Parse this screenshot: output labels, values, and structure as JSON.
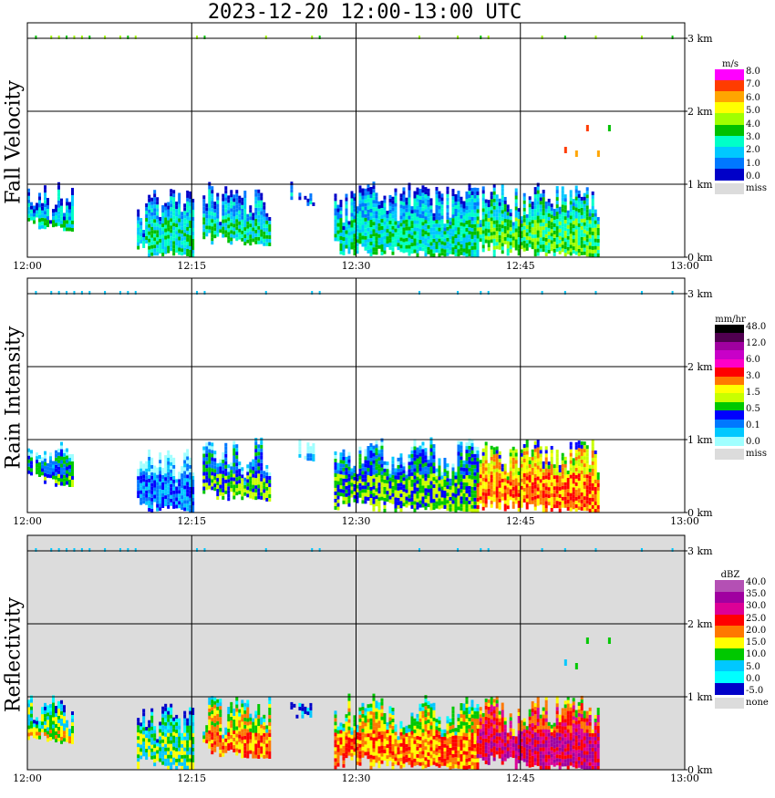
{
  "title": "2023-12-20  12:00-13:00 UTC",
  "colors": {
    "background": "#ffffff",
    "gridline": "#000000",
    "missing": "#dcdcdc"
  },
  "chart_data": [
    {
      "type": "heatmap",
      "title": "Fall Velocity",
      "xlabel": "",
      "ylabel": "Fall Velocity",
      "x_ticks": [
        "12:00",
        "12:15",
        "12:30",
        "12:45",
        "13:00"
      ],
      "y_ticks": [
        "0 km",
        "1 km",
        "2 km",
        "3 km"
      ],
      "xlim": [
        "12:00",
        "13:00"
      ],
      "ylim_km": [
        0,
        3.2
      ],
      "grid": true,
      "colorbar": {
        "unit": "m/s",
        "labels": [
          "8.0",
          "7.0",
          "6.0",
          "5.0",
          "4.0",
          "3.0",
          "2.0",
          "1.0",
          "0.0",
          "miss"
        ],
        "colors": [
          "#ff00ff",
          "#ff3c00",
          "#ffa500",
          "#ffff00",
          "#a0ff00",
          "#00c000",
          "#00ffc8",
          "#00c8ff",
          "#0078ff",
          "#0000c8"
        ],
        "miss_color": "#dcdcdc"
      },
      "background": "#ffffff",
      "echoes": [
        {
          "t_start": "12:00",
          "t_end": "12:04",
          "top_km": 1.0,
          "base_km": 0.35,
          "mean_fall_velocity_ms": 1.5
        },
        {
          "t_start": "12:10",
          "t_end": "12:15",
          "top_km": 0.9,
          "base_km": 0.0,
          "mean_fall_velocity_ms": 1.5
        },
        {
          "t_start": "12:16",
          "t_end": "12:22",
          "top_km": 1.0,
          "base_km": 0.15,
          "mean_fall_velocity_ms": 1.5
        },
        {
          "t_start": "12:24",
          "t_end": "12:26",
          "top_km": 1.0,
          "base_km": 0.7,
          "mean_fall_velocity_ms": 1.5
        },
        {
          "t_start": "12:28",
          "t_end": "12:41",
          "top_km": 1.0,
          "base_km": 0.0,
          "mean_fall_velocity_ms": 2.0
        },
        {
          "t_start": "12:41",
          "t_end": "12:52",
          "top_km": 1.0,
          "base_km": 0.0,
          "mean_fall_velocity_ms": 2.5
        }
      ],
      "isolated_points": [
        {
          "t": "12:49",
          "height_km": 1.45,
          "fall_velocity_ms": 8.0
        },
        {
          "t": "12:50",
          "height_km": 1.4,
          "fall_velocity_ms": 7.0
        },
        {
          "t": "12:51",
          "height_km": 1.75,
          "fall_velocity_ms": 8.0
        },
        {
          "t": "12:52",
          "height_km": 1.4,
          "fall_velocity_ms": 7.0
        },
        {
          "t": "12:53",
          "height_km": 1.75,
          "fall_velocity_ms": 4.0
        }
      ]
    },
    {
      "type": "heatmap",
      "title": "Rain Intensity",
      "xlabel": "",
      "ylabel": "Rain Intensity",
      "x_ticks": [
        "12:00",
        "12:15",
        "12:30",
        "12:45",
        "13:00"
      ],
      "y_ticks": [
        "0 km",
        "1 km",
        "2 km",
        "3 km"
      ],
      "xlim": [
        "12:00",
        "13:00"
      ],
      "ylim_km": [
        0,
        3.2
      ],
      "grid": true,
      "colorbar": {
        "unit": "mm/hr",
        "labels": [
          "48.0",
          "12.0",
          "6.0",
          "3.0",
          "1.5",
          "0.5",
          "0.1",
          "0.0",
          "miss"
        ],
        "colors": [
          "#000000",
          "#500050",
          "#a000a0",
          "#c800c8",
          "#ff00c8",
          "#ff0000",
          "#ff7800",
          "#ffff00",
          "#c8ff00",
          "#00c800",
          "#0000ff",
          "#0078ff",
          "#00c8ff",
          "#a0ffff"
        ],
        "miss_color": "#dcdcdc"
      },
      "background": "#ffffff",
      "echoes": [
        {
          "t_start": "12:00",
          "t_end": "12:04",
          "top_km": 1.0,
          "base_km": 0.35,
          "mean_rain_intensity_mmhr": 0.5
        },
        {
          "t_start": "12:10",
          "t_end": "12:15",
          "top_km": 0.9,
          "base_km": 0.0,
          "mean_rain_intensity_mmhr": 0.1
        },
        {
          "t_start": "12:16",
          "t_end": "12:22",
          "top_km": 1.0,
          "base_km": 0.15,
          "mean_rain_intensity_mmhr": 0.5
        },
        {
          "t_start": "12:24",
          "t_end": "12:26",
          "top_km": 1.0,
          "base_km": 0.7,
          "mean_rain_intensity_mmhr": 0.1
        },
        {
          "t_start": "12:28",
          "t_end": "12:41",
          "top_km": 1.0,
          "base_km": 0.0,
          "mean_rain_intensity_mmhr": 0.5
        },
        {
          "t_start": "12:41",
          "t_end": "12:52",
          "top_km": 1.0,
          "base_km": 0.0,
          "mean_rain_intensity_mmhr": 3.0
        }
      ],
      "isolated_points": []
    },
    {
      "type": "heatmap",
      "title": "Reflectivity",
      "xlabel": "",
      "ylabel": "Reflectivity",
      "x_ticks": [
        "12:00",
        "12:15",
        "12:30",
        "12:45",
        "13:00"
      ],
      "y_ticks": [
        "0 km",
        "1 km",
        "2 km",
        "3 km"
      ],
      "xlim": [
        "12:00",
        "13:00"
      ],
      "ylim_km": [
        0,
        3.2
      ],
      "grid": true,
      "colorbar": {
        "unit": "dBZ",
        "labels": [
          "40.0",
          "35.0",
          "30.0",
          "25.0",
          "20.0",
          "15.0",
          "10.0",
          "5.0",
          "0.0",
          "-5.0",
          "none"
        ],
        "colors": [
          "#b450b4",
          "#a000a0",
          "#dc0096",
          "#ff0000",
          "#ff7800",
          "#ffff00",
          "#00c800",
          "#00c8ff",
          "#00ffff",
          "#0000c8"
        ],
        "miss_color": "#dcdcdc"
      },
      "background": "#dcdcdc",
      "echoes": [
        {
          "t_start": "12:00",
          "t_end": "12:04",
          "top_km": 1.0,
          "base_km": 0.35,
          "mean_reflectivity_dbz": 10
        },
        {
          "t_start": "12:10",
          "t_end": "12:15",
          "top_km": 0.9,
          "base_km": 0.0,
          "mean_reflectivity_dbz": 5
        },
        {
          "t_start": "12:16",
          "t_end": "12:22",
          "top_km": 1.0,
          "base_km": 0.15,
          "mean_reflectivity_dbz": 15
        },
        {
          "t_start": "12:24",
          "t_end": "12:26",
          "top_km": 1.0,
          "base_km": 0.7,
          "mean_reflectivity_dbz": 5
        },
        {
          "t_start": "12:28",
          "t_end": "12:41",
          "top_km": 1.0,
          "base_km": 0.0,
          "mean_reflectivity_dbz": 15
        },
        {
          "t_start": "12:41",
          "t_end": "12:52",
          "top_km": 1.0,
          "base_km": 0.0,
          "mean_reflectivity_dbz": 25
        }
      ],
      "isolated_points": [
        {
          "t": "12:49",
          "height_km": 1.45,
          "reflectivity_dbz": 5
        },
        {
          "t": "12:50",
          "height_km": 1.4,
          "reflectivity_dbz": 10
        },
        {
          "t": "12:51",
          "height_km": 1.75,
          "reflectivity_dbz": 10
        },
        {
          "t": "12:53",
          "height_km": 1.75,
          "reflectivity_dbz": 10
        }
      ]
    }
  ]
}
